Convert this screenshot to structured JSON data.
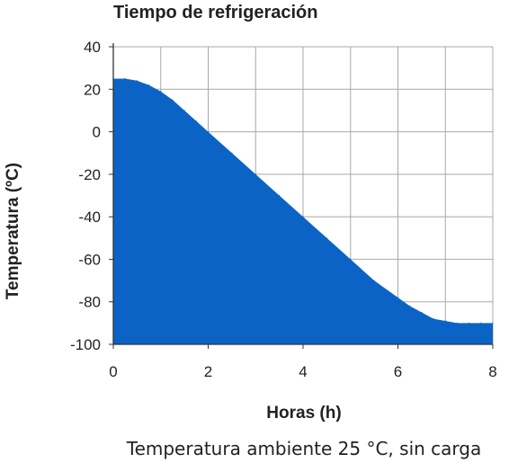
{
  "chart_data": {
    "type": "area",
    "title": "Tiempo de refrigeración",
    "subtitle": "Temperatura ambiente 25 °C, sin carga",
    "xlabel": "Horas (h)",
    "ylabel": "Temperatura (ºC)",
    "xlim": [
      0,
      8
    ],
    "ylim": [
      -100,
      40
    ],
    "x_ticks": [
      "0",
      "2",
      "4",
      "6",
      "8"
    ],
    "y_ticks": [
      "40",
      "20",
      "0",
      "-20",
      "-40",
      "-60",
      "-80",
      "-100"
    ],
    "grid": true,
    "fill_color": "#0b63c6",
    "series": [
      {
        "x": [
          0,
          0.25,
          0.5,
          0.75,
          1,
          1.25,
          1.5,
          1.75,
          2,
          2.5,
          3,
          3.5,
          4,
          4.5,
          5,
          5.5,
          6,
          6.25,
          6.5,
          6.75,
          7,
          7.25,
          7.5,
          7.75,
          8
        ],
        "values": [
          25,
          25,
          24,
          22,
          19,
          15,
          10,
          5,
          0,
          -10,
          -20,
          -30,
          -40,
          -50,
          -60,
          -70,
          -78,
          -82,
          -85,
          -88,
          -89,
          -90,
          -90,
          -90,
          -90
        ]
      }
    ]
  }
}
